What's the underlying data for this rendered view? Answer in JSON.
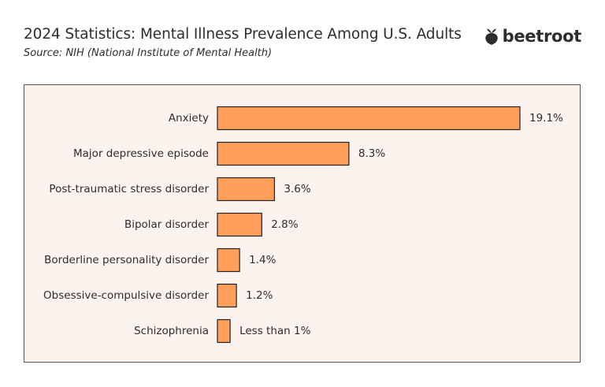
{
  "header": {
    "title": "2024 Statistics: Mental Illness Prevalence Among U.S. Adults",
    "subtitle": "Source: NIH (National Institute of Mental Health)"
  },
  "brand": {
    "name": "beetroot",
    "icon": "beetroot-icon"
  },
  "colors": {
    "bar_fill": "#ff9f5a",
    "bar_stroke": "#222222",
    "panel_background": "#fdf3ee"
  },
  "chart_data": {
    "type": "bar",
    "orientation": "horizontal",
    "title": "2024 Statistics: Mental Illness Prevalence Among U.S. Adults",
    "categories": [
      "Anxiety",
      "Major depressive episode",
      "Post-traumatic stress disorder",
      "Bipolar disorder",
      "Borderline personality disorder",
      "Obsessive-compulsive disorder",
      "Schizophrenia"
    ],
    "values": [
      19.1,
      8.3,
      3.6,
      2.8,
      1.4,
      1.2,
      0.8
    ],
    "value_labels": [
      "19.1%",
      "8.3%",
      "3.6%",
      "2.8%",
      "1.4%",
      "1.2%",
      "Less than 1%"
    ],
    "xlabel": "",
    "ylabel": "",
    "xlim": [
      0,
      19.1
    ],
    "grid": false,
    "legend": "none"
  }
}
